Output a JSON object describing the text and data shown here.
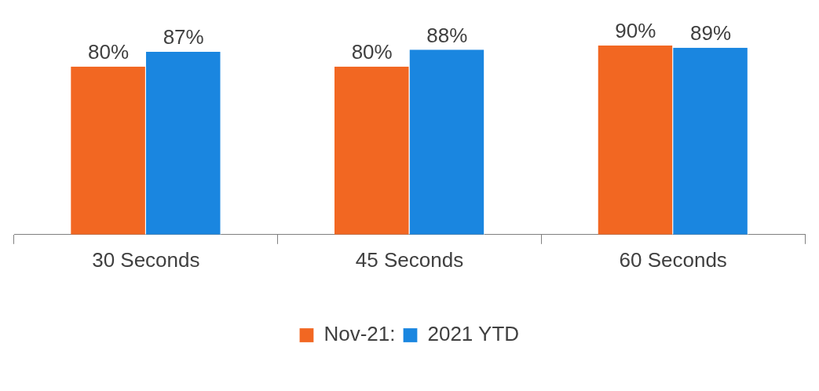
{
  "chart_data": {
    "type": "bar",
    "categories": [
      "30 Seconds",
      "45 Seconds",
      "60 Seconds"
    ],
    "series": [
      {
        "name": "Nov-21:",
        "color": "#f26722",
        "values": [
          80,
          80,
          90
        ],
        "value_labels": [
          "80%",
          "80%",
          "90%"
        ]
      },
      {
        "name": "2021 YTD",
        "color": "#1a86e0",
        "values": [
          87,
          88,
          89
        ],
        "value_labels": [
          "87%",
          "88%",
          "89%"
        ]
      }
    ],
    "grid": false,
    "legend": "bottom",
    "tick_labels": "x"
  }
}
